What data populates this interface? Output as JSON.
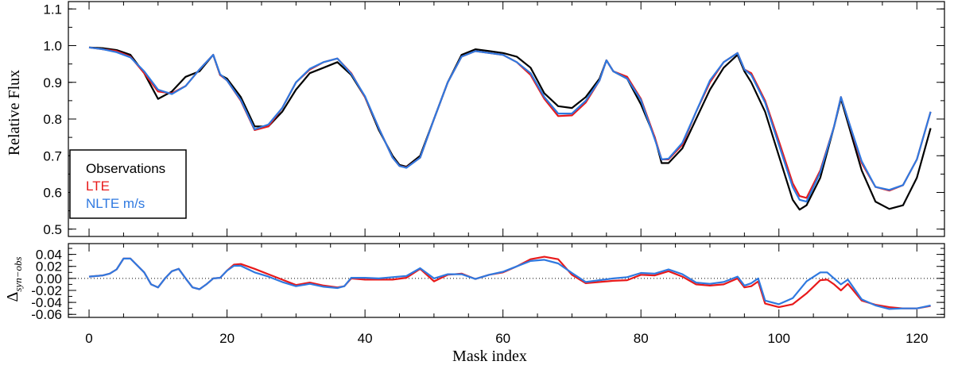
{
  "chart_data": [
    {
      "type": "line",
      "title": "",
      "xlabel": "Mask index",
      "ylabel": "Relative Flux",
      "xlim": [
        -3,
        124
      ],
      "ylim": [
        0.48,
        1.12
      ],
      "xticks": [
        "0",
        "20",
        "40",
        "60",
        "80",
        "100",
        "120"
      ],
      "yticks": [
        "0.5",
        "0.6",
        "0.7",
        "0.8",
        "0.9",
        "1.0",
        "1.1"
      ],
      "legend": {
        "position": "bottom-left",
        "boxed": true
      },
      "grid": false,
      "x": [
        0,
        2,
        4,
        6,
        8,
        10,
        12,
        14,
        16,
        18,
        19,
        20,
        22,
        24,
        26,
        28,
        30,
        32,
        34,
        36,
        38,
        40,
        42,
        44,
        45,
        46,
        48,
        50,
        52,
        54,
        56,
        58,
        60,
        62,
        64,
        66,
        68,
        70,
        72,
        74,
        75,
        76,
        78,
        80,
        82,
        83,
        84,
        86,
        88,
        90,
        92,
        94,
        95,
        96,
        98,
        100,
        102,
        103,
        104,
        106,
        108,
        109,
        110,
        112,
        114,
        116,
        118,
        120,
        122
      ],
      "series": [
        {
          "name": "Observations",
          "color": "#000000",
          "values": [
            0.995,
            0.993,
            0.988,
            0.975,
            0.925,
            0.855,
            0.875,
            0.915,
            0.93,
            0.975,
            0.92,
            0.91,
            0.86,
            0.78,
            0.78,
            0.82,
            0.88,
            0.925,
            0.94,
            0.955,
            0.92,
            0.86,
            0.77,
            0.7,
            0.675,
            0.67,
            0.7,
            0.8,
            0.9,
            0.975,
            0.99,
            0.985,
            0.98,
            0.97,
            0.94,
            0.87,
            0.835,
            0.83,
            0.86,
            0.91,
            0.96,
            0.93,
            0.91,
            0.84,
            0.75,
            0.68,
            0.68,
            0.72,
            0.8,
            0.88,
            0.94,
            0.975,
            0.93,
            0.9,
            0.82,
            0.7,
            0.58,
            0.553,
            0.565,
            0.64,
            0.78,
            0.855,
            0.79,
            0.66,
            0.575,
            0.555,
            0.565,
            0.64,
            0.775
          ]
        },
        {
          "name": "LTE",
          "color": "#e8191a",
          "values": [
            0.995,
            0.99,
            0.985,
            0.97,
            0.925,
            0.875,
            0.87,
            0.89,
            0.935,
            0.975,
            0.92,
            0.905,
            0.85,
            0.77,
            0.78,
            0.83,
            0.9,
            0.935,
            0.955,
            0.965,
            0.925,
            0.86,
            0.775,
            0.695,
            0.672,
            0.668,
            0.695,
            0.8,
            0.9,
            0.97,
            0.985,
            0.98,
            0.975,
            0.955,
            0.92,
            0.855,
            0.808,
            0.81,
            0.845,
            0.905,
            0.96,
            0.93,
            0.915,
            0.855,
            0.75,
            0.69,
            0.69,
            0.73,
            0.82,
            0.9,
            0.955,
            0.98,
            0.935,
            0.925,
            0.85,
            0.74,
            0.625,
            0.59,
            0.585,
            0.66,
            0.78,
            0.86,
            0.8,
            0.68,
            0.615,
            0.605,
            0.62,
            0.69,
            0.82
          ]
        },
        {
          "name": "NLTE m/s",
          "color": "#2f79e0",
          "values": [
            0.995,
            0.99,
            0.982,
            0.968,
            0.93,
            0.88,
            0.868,
            0.89,
            0.935,
            0.975,
            0.922,
            0.905,
            0.852,
            0.772,
            0.785,
            0.83,
            0.9,
            0.937,
            0.955,
            0.965,
            0.923,
            0.862,
            0.775,
            0.695,
            0.672,
            0.667,
            0.695,
            0.8,
            0.9,
            0.97,
            0.985,
            0.98,
            0.975,
            0.955,
            0.925,
            0.86,
            0.815,
            0.815,
            0.85,
            0.905,
            0.96,
            0.93,
            0.91,
            0.852,
            0.745,
            0.69,
            0.692,
            0.735,
            0.82,
            0.905,
            0.955,
            0.98,
            0.935,
            0.92,
            0.845,
            0.73,
            0.615,
            0.58,
            0.575,
            0.655,
            0.78,
            0.86,
            0.8,
            0.685,
            0.615,
            0.607,
            0.62,
            0.69,
            0.82
          ]
        }
      ]
    },
    {
      "type": "line",
      "title": "",
      "xlabel": "Mask index",
      "ylabel": "Δsyn−obs",
      "ylabel_main": "Δ",
      "ylabel_sub": "syn−obs",
      "xlim": [
        -3,
        124
      ],
      "ylim": [
        -0.065,
        0.058
      ],
      "yticks": [
        "0.04",
        "0.02",
        "0.00",
        "-0.02",
        "-0.04",
        "-0.06"
      ],
      "reference_line": {
        "y": 0,
        "style": "dotted"
      },
      "grid": false,
      "x": [
        0,
        2,
        3,
        4,
        5,
        6,
        8,
        9,
        10,
        11,
        12,
        13,
        14,
        15,
        16,
        17,
        18,
        19,
        20,
        21,
        22,
        24,
        26,
        28,
        30,
        32,
        34,
        36,
        37,
        38,
        40,
        42,
        44,
        46,
        48,
        50,
        52,
        54,
        56,
        58,
        60,
        62,
        64,
        66,
        68,
        70,
        72,
        74,
        76,
        78,
        80,
        82,
        84,
        86,
        88,
        90,
        92,
        94,
        95,
        96,
        97,
        98,
        100,
        102,
        104,
        106,
        107,
        108,
        109,
        110,
        112,
        114,
        116,
        118,
        120,
        122
      ],
      "series": [
        {
          "name": "LTE",
          "color": "#e8191a",
          "values": [
            0.003,
            0.005,
            0.008,
            0.015,
            0.033,
            0.033,
            0.01,
            -0.01,
            -0.015,
            0.0,
            0.012,
            0.016,
            0.0,
            -0.015,
            -0.018,
            -0.01,
            0.0,
            0.001,
            0.013,
            0.023,
            0.024,
            0.016,
            0.007,
            -0.002,
            -0.011,
            -0.007,
            -0.012,
            -0.015,
            -0.013,
            0.0,
            -0.002,
            -0.002,
            -0.002,
            0.001,
            0.016,
            -0.005,
            0.006,
            0.008,
            -0.001,
            0.006,
            0.01,
            0.02,
            0.032,
            0.036,
            0.032,
            0.006,
            -0.008,
            -0.006,
            -0.004,
            -0.003,
            0.006,
            0.005,
            0.012,
            0.003,
            -0.01,
            -0.012,
            -0.01,
            0.0,
            -0.015,
            -0.013,
            -0.005,
            -0.042,
            -0.048,
            -0.043,
            -0.025,
            -0.003,
            -0.002,
            -0.01,
            -0.02,
            -0.009,
            -0.037,
            -0.044,
            -0.048,
            -0.05,
            -0.05,
            -0.046
          ]
        },
        {
          "name": "NLTE m/s",
          "color": "#2f79e0",
          "values": [
            0.003,
            0.005,
            0.008,
            0.015,
            0.033,
            0.033,
            0.01,
            -0.01,
            -0.015,
            0.0,
            0.012,
            0.016,
            0.0,
            -0.015,
            -0.018,
            -0.01,
            0.0,
            0.001,
            0.013,
            0.021,
            0.021,
            0.01,
            0.003,
            -0.006,
            -0.013,
            -0.009,
            -0.014,
            -0.016,
            -0.013,
            0.001,
            0.001,
            0.0,
            0.002,
            0.004,
            0.017,
            0.0,
            0.007,
            0.007,
            -0.001,
            0.006,
            0.011,
            0.02,
            0.029,
            0.031,
            0.025,
            0.009,
            -0.006,
            -0.003,
            0.0,
            0.002,
            0.009,
            0.008,
            0.015,
            0.007,
            -0.007,
            -0.009,
            -0.006,
            0.003,
            -0.012,
            -0.008,
            0.0,
            -0.037,
            -0.043,
            -0.033,
            -0.005,
            0.01,
            0.01,
            0.0,
            -0.01,
            -0.002,
            -0.035,
            -0.045,
            -0.051,
            -0.05,
            -0.05,
            -0.045
          ]
        }
      ]
    }
  ]
}
